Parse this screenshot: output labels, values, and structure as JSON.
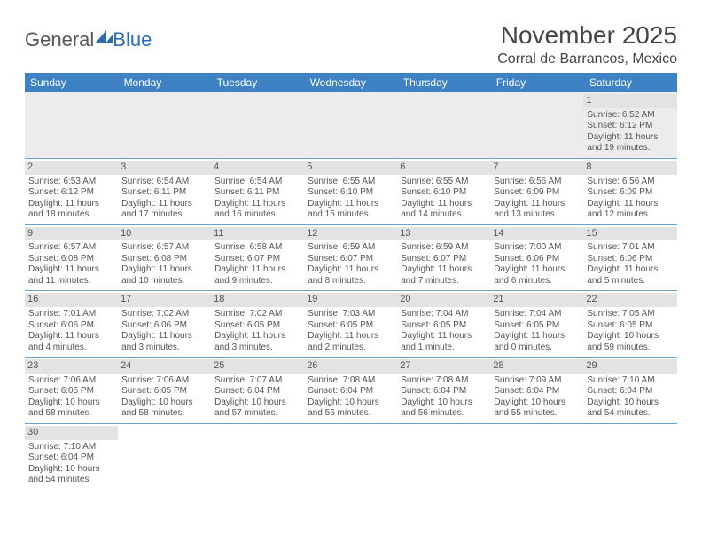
{
  "brand": {
    "part1": "General",
    "part2": "Blue"
  },
  "title": "November 2025",
  "location": "Corral de Barrancos, Mexico",
  "day_headers": [
    "Sunday",
    "Monday",
    "Tuesday",
    "Wednesday",
    "Thursday",
    "Friday",
    "Saturday"
  ],
  "colors": {
    "header_bg": "#3e82c4",
    "header_text": "#ffffff",
    "row_divider": "#6fa0cd",
    "daynum_bg": "#e3e3e3",
    "blank_bg": "#ececec",
    "text": "#555555",
    "brand_blue": "#2a6db0"
  },
  "weeks": [
    [
      null,
      null,
      null,
      null,
      null,
      null,
      {
        "n": "1",
        "sr": "Sunrise: 6:52 AM",
        "ss": "Sunset: 6:12 PM",
        "dl": "Daylight: 11 hours and 19 minutes."
      }
    ],
    [
      {
        "n": "2",
        "sr": "Sunrise: 6:53 AM",
        "ss": "Sunset: 6:12 PM",
        "dl": "Daylight: 11 hours and 18 minutes."
      },
      {
        "n": "3",
        "sr": "Sunrise: 6:54 AM",
        "ss": "Sunset: 6:11 PM",
        "dl": "Daylight: 11 hours and 17 minutes."
      },
      {
        "n": "4",
        "sr": "Sunrise: 6:54 AM",
        "ss": "Sunset: 6:11 PM",
        "dl": "Daylight: 11 hours and 16 minutes."
      },
      {
        "n": "5",
        "sr": "Sunrise: 6:55 AM",
        "ss": "Sunset: 6:10 PM",
        "dl": "Daylight: 11 hours and 15 minutes."
      },
      {
        "n": "6",
        "sr": "Sunrise: 6:55 AM",
        "ss": "Sunset: 6:10 PM",
        "dl": "Daylight: 11 hours and 14 minutes."
      },
      {
        "n": "7",
        "sr": "Sunrise: 6:56 AM",
        "ss": "Sunset: 6:09 PM",
        "dl": "Daylight: 11 hours and 13 minutes."
      },
      {
        "n": "8",
        "sr": "Sunrise: 6:56 AM",
        "ss": "Sunset: 6:09 PM",
        "dl": "Daylight: 11 hours and 12 minutes."
      }
    ],
    [
      {
        "n": "9",
        "sr": "Sunrise: 6:57 AM",
        "ss": "Sunset: 6:08 PM",
        "dl": "Daylight: 11 hours and 11 minutes."
      },
      {
        "n": "10",
        "sr": "Sunrise: 6:57 AM",
        "ss": "Sunset: 6:08 PM",
        "dl": "Daylight: 11 hours and 10 minutes."
      },
      {
        "n": "11",
        "sr": "Sunrise: 6:58 AM",
        "ss": "Sunset: 6:07 PM",
        "dl": "Daylight: 11 hours and 9 minutes."
      },
      {
        "n": "12",
        "sr": "Sunrise: 6:59 AM",
        "ss": "Sunset: 6:07 PM",
        "dl": "Daylight: 11 hours and 8 minutes."
      },
      {
        "n": "13",
        "sr": "Sunrise: 6:59 AM",
        "ss": "Sunset: 6:07 PM",
        "dl": "Daylight: 11 hours and 7 minutes."
      },
      {
        "n": "14",
        "sr": "Sunrise: 7:00 AM",
        "ss": "Sunset: 6:06 PM",
        "dl": "Daylight: 11 hours and 6 minutes."
      },
      {
        "n": "15",
        "sr": "Sunrise: 7:01 AM",
        "ss": "Sunset: 6:06 PM",
        "dl": "Daylight: 11 hours and 5 minutes."
      }
    ],
    [
      {
        "n": "16",
        "sr": "Sunrise: 7:01 AM",
        "ss": "Sunset: 6:06 PM",
        "dl": "Daylight: 11 hours and 4 minutes."
      },
      {
        "n": "17",
        "sr": "Sunrise: 7:02 AM",
        "ss": "Sunset: 6:06 PM",
        "dl": "Daylight: 11 hours and 3 minutes."
      },
      {
        "n": "18",
        "sr": "Sunrise: 7:02 AM",
        "ss": "Sunset: 6:05 PM",
        "dl": "Daylight: 11 hours and 3 minutes."
      },
      {
        "n": "19",
        "sr": "Sunrise: 7:03 AM",
        "ss": "Sunset: 6:05 PM",
        "dl": "Daylight: 11 hours and 2 minutes."
      },
      {
        "n": "20",
        "sr": "Sunrise: 7:04 AM",
        "ss": "Sunset: 6:05 PM",
        "dl": "Daylight: 11 hours and 1 minute."
      },
      {
        "n": "21",
        "sr": "Sunrise: 7:04 AM",
        "ss": "Sunset: 6:05 PM",
        "dl": "Daylight: 11 hours and 0 minutes."
      },
      {
        "n": "22",
        "sr": "Sunrise: 7:05 AM",
        "ss": "Sunset: 6:05 PM",
        "dl": "Daylight: 10 hours and 59 minutes."
      }
    ],
    [
      {
        "n": "23",
        "sr": "Sunrise: 7:06 AM",
        "ss": "Sunset: 6:05 PM",
        "dl": "Daylight: 10 hours and 58 minutes."
      },
      {
        "n": "24",
        "sr": "Sunrise: 7:06 AM",
        "ss": "Sunset: 6:05 PM",
        "dl": "Daylight: 10 hours and 58 minutes."
      },
      {
        "n": "25",
        "sr": "Sunrise: 7:07 AM",
        "ss": "Sunset: 6:04 PM",
        "dl": "Daylight: 10 hours and 57 minutes."
      },
      {
        "n": "26",
        "sr": "Sunrise: 7:08 AM",
        "ss": "Sunset: 6:04 PM",
        "dl": "Daylight: 10 hours and 56 minutes."
      },
      {
        "n": "27",
        "sr": "Sunrise: 7:08 AM",
        "ss": "Sunset: 6:04 PM",
        "dl": "Daylight: 10 hours and 56 minutes."
      },
      {
        "n": "28",
        "sr": "Sunrise: 7:09 AM",
        "ss": "Sunset: 6:04 PM",
        "dl": "Daylight: 10 hours and 55 minutes."
      },
      {
        "n": "29",
        "sr": "Sunrise: 7:10 AM",
        "ss": "Sunset: 6:04 PM",
        "dl": "Daylight: 10 hours and 54 minutes."
      }
    ],
    [
      {
        "n": "30",
        "sr": "Sunrise: 7:10 AM",
        "ss": "Sunset: 6:04 PM",
        "dl": "Daylight: 10 hours and 54 minutes."
      },
      null,
      null,
      null,
      null,
      null,
      null
    ]
  ]
}
